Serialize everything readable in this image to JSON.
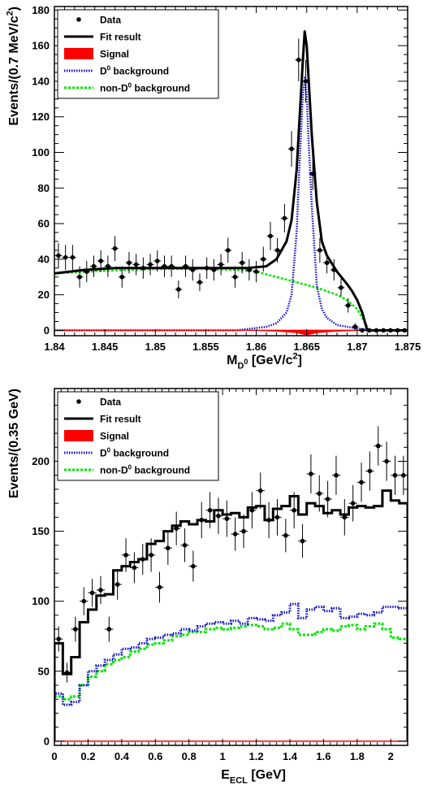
{
  "chart_data": [
    {
      "type": "line",
      "xlabel": "M_{D^0} [GeV/c^2]",
      "ylabel": "Events/(0.7 MeV/c^2)",
      "xlim": [
        1.84,
        1.875
      ],
      "ylim": [
        -3,
        182
      ],
      "xticks": [
        "1.84",
        "1.845",
        "1.85",
        "1.855",
        "1.86",
        "1.865",
        "1.87",
        "1.875"
      ],
      "yticks": [
        "0",
        "20",
        "40",
        "60",
        "80",
        "100",
        "120",
        "140",
        "160",
        "180"
      ],
      "grid": false,
      "legend_position": "top-left",
      "legend": [
        "Data",
        "Fit result",
        "Signal",
        "D^0 background",
        "non-D^0 background"
      ],
      "series": [
        {
          "name": "Data",
          "style": "points",
          "color": "#000000",
          "x": [
            1.8404,
            1.8411,
            1.8418,
            1.8425,
            1.8432,
            1.8439,
            1.8446,
            1.8453,
            1.846,
            1.8467,
            1.8474,
            1.8481,
            1.8488,
            1.8495,
            1.8502,
            1.8509,
            1.8516,
            1.8523,
            1.853,
            1.8537,
            1.8544,
            1.8551,
            1.8558,
            1.8565,
            1.8572,
            1.8579,
            1.8586,
            1.8593,
            1.86,
            1.8607,
            1.8614,
            1.8621,
            1.8628,
            1.8635,
            1.8642,
            1.8649,
            1.8656,
            1.8663,
            1.867,
            1.8677,
            1.8684,
            1.8691,
            1.8698,
            1.8705,
            1.8712,
            1.8719,
            1.8726,
            1.8733,
            1.874,
            1.8747
          ],
          "y": [
            42,
            41,
            41,
            30,
            33,
            36,
            39,
            36,
            46,
            30,
            38,
            37,
            35,
            37,
            39,
            36,
            36,
            23,
            36,
            34,
            27,
            35,
            34,
            37,
            45,
            30,
            38,
            34,
            33,
            40,
            53,
            45,
            63,
            102,
            152,
            140,
            88,
            45,
            38,
            34,
            24,
            14,
            2,
            0,
            0,
            0,
            0,
            0,
            0,
            0
          ],
          "yerr": [
            7,
            7,
            7,
            6,
            6,
            6,
            6,
            6,
            7,
            6,
            6,
            6,
            6,
            6,
            6,
            6,
            6,
            5,
            6,
            6,
            5,
            6,
            6,
            6,
            7,
            6,
            6,
            6,
            6,
            7,
            8,
            7,
            8,
            10,
            12,
            12,
            9,
            7,
            6,
            6,
            5,
            4,
            2,
            0,
            0,
            0,
            0,
            0,
            0,
            0
          ]
        },
        {
          "name": "Fit result",
          "style": "line",
          "color": "#000000",
          "x": [
            1.84,
            1.843,
            1.846,
            1.849,
            1.852,
            1.855,
            1.857,
            1.859,
            1.861,
            1.862,
            1.863,
            1.8635,
            1.864,
            1.8643,
            1.8646,
            1.8648,
            1.865,
            1.8652,
            1.8655,
            1.866,
            1.8665,
            1.867,
            1.868,
            1.869,
            1.8695,
            1.87,
            1.8705,
            1.8708,
            1.871,
            1.872,
            1.875
          ],
          "y": [
            32,
            34,
            35,
            35,
            35,
            35,
            35,
            35,
            36,
            40,
            50,
            62,
            90,
            120,
            150,
            168,
            160,
            140,
            110,
            72,
            50,
            42,
            33,
            26,
            22,
            17,
            10,
            4,
            0,
            0,
            0
          ]
        },
        {
          "name": "Signal",
          "style": "fill",
          "color": "#ff0000",
          "x": [
            1.84,
            1.86,
            1.862,
            1.864,
            1.865,
            1.866,
            1.868,
            1.87,
            1.875
          ],
          "y": [
            0,
            0,
            -0.3,
            -1.2,
            -2.5,
            -1.2,
            -0.3,
            0,
            0
          ]
        },
        {
          "name": "D^0 background",
          "style": "dotted",
          "color": "#1414c8",
          "x": [
            1.84,
            1.858,
            1.861,
            1.862,
            1.863,
            1.8635,
            1.864,
            1.8643,
            1.8646,
            1.8648,
            1.865,
            1.8652,
            1.8655,
            1.866,
            1.8665,
            1.867,
            1.868,
            1.87,
            1.8708,
            1.8712,
            1.875
          ],
          "y": [
            0,
            0,
            2,
            4,
            10,
            20,
            55,
            95,
            130,
            142,
            132,
            105,
            70,
            25,
            12,
            7,
            3,
            1,
            0.5,
            0,
            0
          ]
        },
        {
          "name": "non-D^0 background",
          "style": "dotted",
          "color": "#00e600",
          "x": [
            1.84,
            1.845,
            1.85,
            1.855,
            1.858,
            1.86,
            1.862,
            1.864,
            1.866,
            1.868,
            1.869,
            1.87,
            1.8705,
            1.871,
            1.8712,
            1.875
          ],
          "y": [
            32,
            33.5,
            34.5,
            34.5,
            34,
            33,
            30,
            27,
            24,
            20,
            17,
            12,
            7,
            2,
            0,
            0
          ]
        }
      ]
    },
    {
      "type": "line",
      "xlabel": "E_{ECL} [GeV]",
      "ylabel": "Events/(0.35 GeV)",
      "xlim": [
        0,
        2.1
      ],
      "ylim": [
        -3,
        252
      ],
      "xticks": [
        "0",
        "0.2",
        "0.4",
        "0.6",
        "0.8",
        "1",
        "1.2",
        "1.4",
        "1.6",
        "1.8",
        "2"
      ],
      "yticks": [
        "0",
        "50",
        "100",
        "150",
        "200"
      ],
      "grid": false,
      "legend_position": "top-left",
      "legend": [
        "Data",
        "Fit result",
        "Signal",
        "D^0 background",
        "non-D^0 background"
      ],
      "series": [
        {
          "name": "Data",
          "style": "points",
          "color": "#000000",
          "x": [
            0.025,
            0.075,
            0.125,
            0.175,
            0.225,
            0.275,
            0.325,
            0.375,
            0.425,
            0.475,
            0.525,
            0.575,
            0.625,
            0.675,
            0.725,
            0.775,
            0.825,
            0.875,
            0.925,
            0.975,
            1.025,
            1.075,
            1.125,
            1.175,
            1.225,
            1.275,
            1.325,
            1.375,
            1.425,
            1.475,
            1.525,
            1.575,
            1.625,
            1.675,
            1.725,
            1.775,
            1.825,
            1.875,
            1.925,
            1.975,
            2.025,
            2.075
          ],
          "y": [
            73,
            49,
            80,
            100,
            106,
            108,
            80,
            112,
            133,
            124,
            130,
            133,
            110,
            138,
            152,
            140,
            125,
            158,
            165,
            161,
            159,
            148,
            150,
            165,
            179,
            158,
            160,
            147,
            165,
            143,
            191,
            177,
            173,
            190,
            160,
            170,
            185,
            193,
            211,
            200,
            190,
            190
          ],
          "yerr": [
            9,
            7,
            9,
            10,
            10,
            10,
            9,
            11,
            12,
            11,
            11,
            12,
            11,
            12,
            12,
            12,
            11,
            13,
            13,
            13,
            13,
            12,
            12,
            13,
            13,
            13,
            13,
            12,
            13,
            12,
            14,
            13,
            13,
            14,
            13,
            13,
            14,
            14,
            14,
            14,
            14,
            14
          ]
        },
        {
          "name": "Fit result",
          "style": "step",
          "color": "#000000",
          "edges": [
            0,
            0.05,
            0.1,
            0.15,
            0.2,
            0.25,
            0.3,
            0.35,
            0.4,
            0.45,
            0.5,
            0.55,
            0.6,
            0.65,
            0.7,
            0.75,
            0.8,
            0.85,
            0.9,
            0.95,
            1.0,
            1.05,
            1.1,
            1.15,
            1.2,
            1.25,
            1.3,
            1.35,
            1.4,
            1.45,
            1.5,
            1.55,
            1.6,
            1.65,
            1.7,
            1.75,
            1.8,
            1.85,
            1.9,
            1.95,
            2.0,
            2.05,
            2.1
          ],
          "values": [
            70,
            48,
            60,
            85,
            94,
            104,
            105,
            122,
            125,
            128,
            130,
            141,
            143,
            150,
            154,
            157,
            155,
            158,
            157,
            165,
            162,
            163,
            160,
            167,
            168,
            158,
            166,
            168,
            175,
            162,
            170,
            168,
            163,
            165,
            162,
            167,
            168,
            167,
            168,
            179,
            172,
            170
          ]
        },
        {
          "name": "Signal",
          "style": "line",
          "color": "#ff0000",
          "x": [
            0,
            2.1
          ],
          "y": [
            0,
            0
          ]
        },
        {
          "name": "D^0 background",
          "style": "step",
          "color": "#1414c8",
          "edges": [
            0,
            0.05,
            0.1,
            0.15,
            0.2,
            0.25,
            0.3,
            0.35,
            0.4,
            0.45,
            0.5,
            0.55,
            0.6,
            0.65,
            0.7,
            0.75,
            0.8,
            0.85,
            0.9,
            0.95,
            1.0,
            1.05,
            1.1,
            1.15,
            1.2,
            1.25,
            1.3,
            1.35,
            1.4,
            1.45,
            1.5,
            1.55,
            1.6,
            1.65,
            1.7,
            1.75,
            1.8,
            1.85,
            1.9,
            1.95,
            2.0,
            2.05,
            2.1
          ],
          "values": [
            34,
            26,
            28,
            40,
            50,
            54,
            58,
            62,
            66,
            67,
            70,
            73,
            74,
            76,
            77,
            80,
            79,
            82,
            84,
            85,
            84,
            86,
            84,
            88,
            87,
            86,
            90,
            92,
            98,
            88,
            94,
            96,
            93,
            95,
            88,
            89,
            91,
            90,
            92,
            96,
            96,
            95
          ]
        },
        {
          "name": "non-D^0 background",
          "style": "step",
          "color": "#00e600",
          "edges": [
            0,
            0.05,
            0.1,
            0.15,
            0.2,
            0.25,
            0.3,
            0.35,
            0.4,
            0.45,
            0.5,
            0.55,
            0.6,
            0.65,
            0.7,
            0.75,
            0.8,
            0.85,
            0.9,
            0.95,
            1.0,
            1.05,
            1.1,
            1.15,
            1.2,
            1.25,
            1.3,
            1.35,
            1.4,
            1.45,
            1.5,
            1.55,
            1.6,
            1.65,
            1.7,
            1.75,
            1.8,
            1.85,
            1.9,
            1.95,
            2.0,
            2.05,
            2.1
          ],
          "values": [
            32,
            30,
            32,
            40,
            46,
            50,
            55,
            58,
            60,
            64,
            66,
            69,
            70,
            72,
            75,
            76,
            78,
            78,
            80,
            81,
            80,
            81,
            82,
            83,
            82,
            80,
            81,
            84,
            80,
            76,
            76,
            78,
            80,
            79,
            82,
            83,
            80,
            82,
            84,
            80,
            74,
            73
          ]
        }
      ]
    }
  ]
}
